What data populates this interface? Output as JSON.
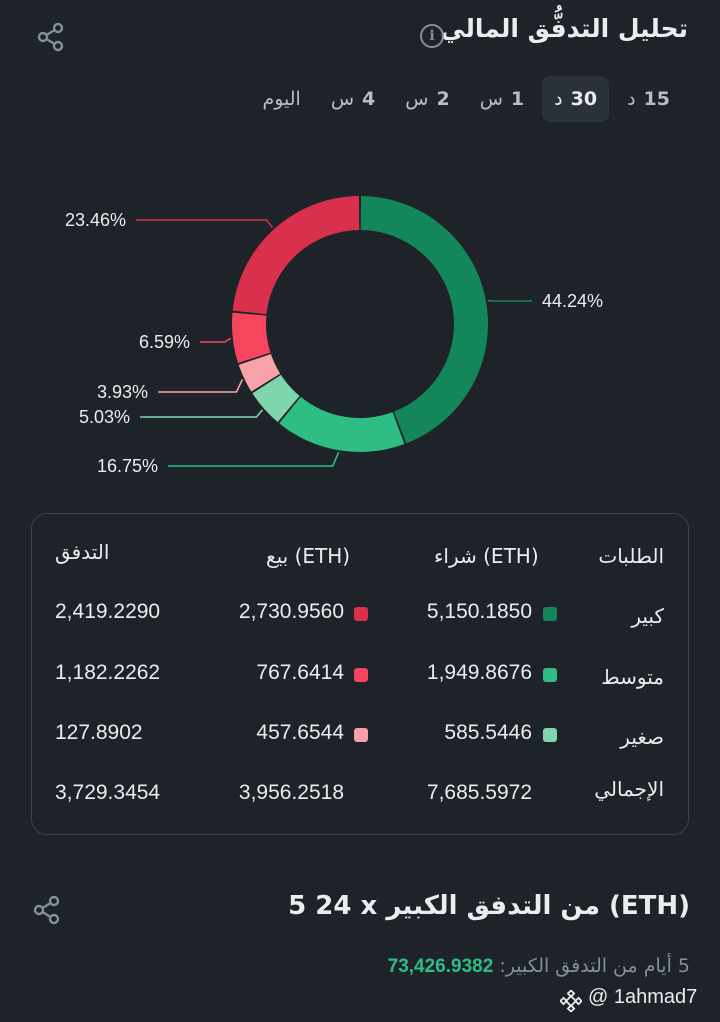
{
  "header": {
    "title": "تحليل التدفُّق المالي",
    "info_icon": "info-icon",
    "share_icon": "share-icon"
  },
  "tabs": [
    {
      "num": "15",
      "unit": "د",
      "active": false
    },
    {
      "num": "30",
      "unit": "د",
      "active": true
    },
    {
      "num": "1",
      "unit": "س",
      "active": false
    },
    {
      "num": "2",
      "unit": "س",
      "active": false
    },
    {
      "num": "4",
      "unit": "س",
      "active": false
    },
    {
      "num": "",
      "unit": "اليوم",
      "active": false
    }
  ],
  "chart_data": {
    "type": "pie",
    "donut": true,
    "slices": [
      {
        "label": "44.24%",
        "value": 44.24,
        "color": "#14875a"
      },
      {
        "label": "16.75%",
        "value": 16.75,
        "color": "#2ebd85"
      },
      {
        "label": "5.03%",
        "value": 5.03,
        "color": "#7fd6ad"
      },
      {
        "label": "3.93%",
        "value": 3.93,
        "color": "#f7a1a8"
      },
      {
        "label": "6.59%",
        "value": 6.59,
        "color": "#f6465d"
      },
      {
        "label": "23.46%",
        "value": 23.46,
        "color": "#d9304e"
      }
    ]
  },
  "table": {
    "headers": {
      "orders": "الطلبات",
      "buy": "شراء (ETH)",
      "sell": "بيع (ETH)",
      "flow": "التدفق"
    },
    "rows": [
      {
        "label": "كبير",
        "buy": "5,150.1850",
        "sell": "2,730.9560",
        "flow": "2,419.2290",
        "buy_color": "#14875a",
        "sell_color": "#d9304e"
      },
      {
        "label": "متوسط",
        "buy": "1,949.8676",
        "sell": "767.6414",
        "flow": "1,182.2262",
        "buy_color": "#2ebd85",
        "sell_color": "#f6465d"
      },
      {
        "label": "صغير",
        "buy": "585.5446",
        "sell": "457.6544",
        "flow": "127.8902",
        "buy_color": "#7fd6ad",
        "sell_color": "#f7a1a8"
      },
      {
        "label": "الإجمالي",
        "buy": "7,685.5972",
        "sell": "3,956.2518",
        "flow": "3,729.3454"
      }
    ]
  },
  "section2": {
    "title": "5 24 x من التدفق الكبير (ETH)",
    "share_icon": "share-icon",
    "footer_label": "5 أيام من التدفق الكبير:",
    "footer_value": "73,426.9382"
  },
  "watermark": {
    "text": "@ 1ahmad7",
    "logo_icon": "binance-logo-icon"
  }
}
